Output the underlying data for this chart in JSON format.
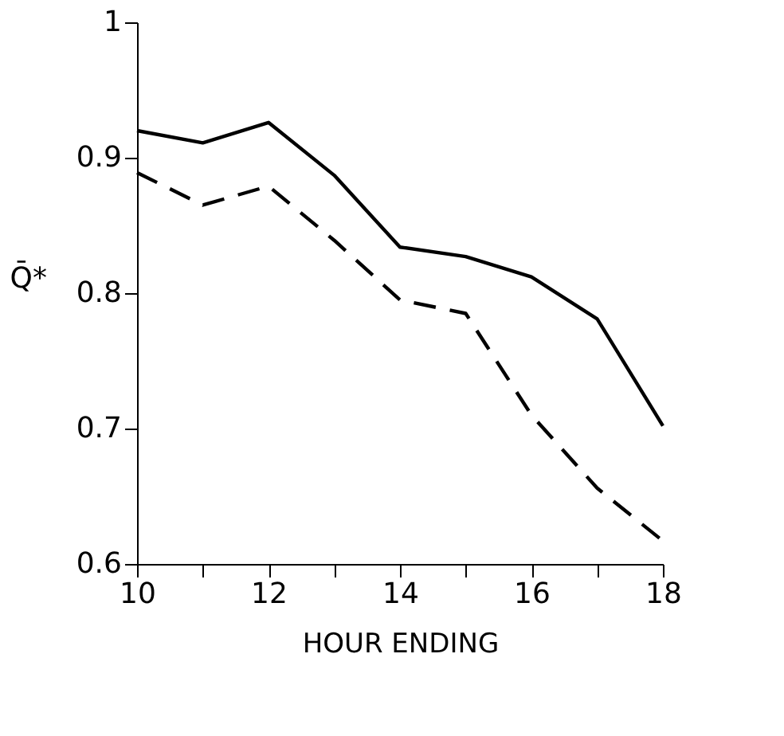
{
  "chart_data": {
    "type": "line",
    "xlabel": "HOUR ENDING",
    "ylabel": "Q̄*",
    "x": [
      10,
      11,
      12,
      13,
      14,
      15,
      16,
      17,
      18
    ],
    "series": [
      {
        "color": "#000000",
        "line_style": "solid",
        "values": [
          0.92,
          0.911,
          0.926,
          0.887,
          0.834,
          0.827,
          0.812,
          0.781,
          0.702
        ]
      },
      {
        "color": "#000000",
        "line_style": "dashed",
        "values": [
          0.889,
          0.865,
          0.879,
          0.839,
          0.795,
          0.785,
          0.71,
          0.656,
          0.617
        ]
      }
    ],
    "xlim": [
      10,
      18
    ],
    "ylim": [
      0.6,
      1
    ],
    "xticks": [
      10,
      {
        "value": 11,
        "label": null
      },
      12,
      {
        "value": 13,
        "label": null
      },
      14,
      {
        "value": 15,
        "label": null
      },
      16,
      {
        "value": 17,
        "label": null
      },
      18
    ],
    "yticks": [
      {
        "value": 0.6,
        "label": "0.6"
      },
      {
        "value": 0.7,
        "label": "0.7"
      },
      {
        "value": 0.8,
        "label": "0.8"
      },
      {
        "value": 0.9,
        "label": "0.9"
      },
      1
    ],
    "grid": false,
    "marker": "none"
  }
}
